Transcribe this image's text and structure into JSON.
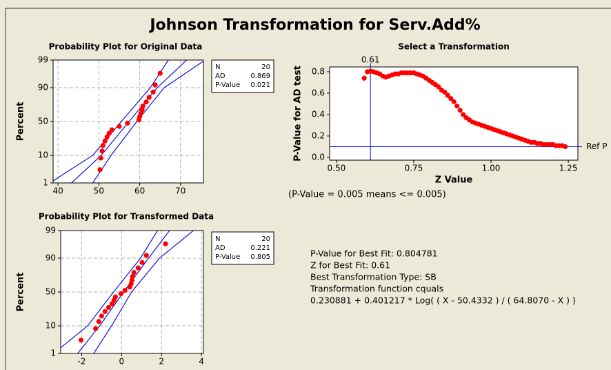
{
  "title": "Johnson Transformation for Serv.Add%",
  "chart_data": [
    {
      "type": "probability",
      "title": "Probability Plot for Original Data",
      "ylabel": "Percent",
      "xlim": [
        38.8,
        75.6
      ],
      "xticks": [
        40,
        50,
        60,
        70
      ],
      "ylim": [
        1,
        99
      ],
      "yticks": [
        1,
        10,
        50,
        90,
        99
      ],
      "grid": true,
      "color": "#ff0000",
      "line_color": "#1010e0",
      "x": [
        50.3,
        50.5,
        50.8,
        51.0,
        51.5,
        52.0,
        52.5,
        53.2,
        55.0,
        57.0,
        59.8,
        60.0,
        60.3,
        60.6,
        60.8,
        61.6,
        62.3,
        63.3,
        63.8,
        65.0
      ],
      "values": [
        3.4,
        8.3,
        13.2,
        18.1,
        23.0,
        27.9,
        32.8,
        37.7,
        42.6,
        47.5,
        52.5,
        57.4,
        62.3,
        67.2,
        72.1,
        77.0,
        81.9,
        86.8,
        91.7,
        96.6
      ],
      "curves": [
        {
          "x": [
            38.0,
            48.5,
            55.5,
            62.6,
            67.0
          ],
          "y": [
            1,
            10,
            50,
            90,
            99
          ]
        },
        {
          "x": [
            43.3,
            50.6,
            57.4,
            64.3,
            71.5
          ],
          "y": [
            1,
            10,
            50,
            90,
            99
          ]
        },
        {
          "x": [
            48.5,
            53.0,
            59.3,
            66.0,
            76.0
          ],
          "y": [
            1,
            10,
            50,
            90,
            99
          ]
        }
      ],
      "stats": [
        {
          "label": "N",
          "value": 20
        },
        {
          "label": "AD",
          "value": 0.869
        },
        {
          "label": "P-Value",
          "value": 0.021
        }
      ]
    },
    {
      "type": "probability",
      "title": "Probability Plot for Transformed Data",
      "ylabel": "Percent",
      "xlim": [
        -3.05,
        4.1
      ],
      "xticks": [
        -2,
        0,
        2,
        4
      ],
      "ylim": [
        1,
        99
      ],
      "yticks": [
        1,
        10,
        50,
        90,
        99
      ],
      "grid": true,
      "color": "#ff0000",
      "line_color": "#1010e0",
      "x": [
        -2.03,
        -1.3,
        -1.14,
        -1.0,
        -0.83,
        -0.65,
        -0.48,
        -0.38,
        -0.31,
        -0.03,
        0.17,
        0.41,
        0.48,
        0.52,
        0.55,
        0.62,
        0.83,
        1.03,
        1.24,
        2.2
      ],
      "values": [
        3.4,
        8.3,
        13.2,
        18.1,
        23.0,
        27.9,
        32.8,
        37.7,
        42.6,
        47.5,
        52.5,
        57.4,
        62.3,
        67.2,
        72.1,
        77.0,
        81.9,
        86.8,
        91.7,
        96.6
      ],
      "curves": [
        {
          "x": [
            -3.4,
            -1.7,
            -0.4,
            0.95,
            1.8
          ],
          "y": [
            1,
            10,
            50,
            90,
            99
          ]
        },
        {
          "x": [
            -2.2,
            -1.1,
            0.1,
            1.35,
            2.4
          ],
          "y": [
            1,
            10,
            50,
            90,
            99
          ]
        },
        {
          "x": [
            -1.4,
            -0.5,
            0.5,
            1.9,
            3.6
          ],
          "y": [
            1,
            10,
            50,
            90,
            99
          ]
        }
      ],
      "stats": [
        {
          "label": "N",
          "value": 20
        },
        {
          "label": "AD",
          "value": 0.221
        },
        {
          "label": "P-Value",
          "value": 0.805
        }
      ],
      "annotations": [
        "P-Value for Best Fit: 0.804781",
        "Z for Best Fit: 0.61",
        "Best Transformation Type: SB",
        "Transformation function cquals",
        "0.230881 + 0.401217 * Log( ( X - 50.4332 ) / ( 64.8070 - X ) )"
      ]
    },
    {
      "type": "scatter",
      "title": "Select a Transformation",
      "xlabel": "Z Value",
      "ylabel": "P-Value for AD test",
      "xlim": [
        0.478,
        1.281
      ],
      "xticks": [
        {
          "value": 0.5,
          "label": "0.50"
        },
        0.75,
        {
          "value": 1,
          "label": "1.00"
        },
        1.25
      ],
      "ylim": [
        -0.026,
        0.845
      ],
      "yticks": [
        {
          "value": 0,
          "label": "0.0"
        },
        0.2,
        0.4,
        0.6,
        0.8
      ],
      "grid": false,
      "color": "#ff0000",
      "line_color": "#1010e0",
      "x": [
        0.59,
        0.6,
        0.61,
        0.62,
        0.63,
        0.64,
        0.65,
        0.66,
        0.67,
        0.68,
        0.69,
        0.7,
        0.71,
        0.72,
        0.73,
        0.74,
        0.75,
        0.76,
        0.77,
        0.78,
        0.79,
        0.8,
        0.81,
        0.82,
        0.83,
        0.84,
        0.85,
        0.86,
        0.87,
        0.88,
        0.89,
        0.9,
        0.91,
        0.92,
        0.93,
        0.94,
        0.95,
        0.96,
        0.97,
        0.98,
        0.99,
        1.0,
        1.01,
        1.02,
        1.03,
        1.04,
        1.05,
        1.06,
        1.07,
        1.08,
        1.09,
        1.1,
        1.11,
        1.12,
        1.13,
        1.14,
        1.15,
        1.16,
        1.17,
        1.18,
        1.19,
        1.2,
        1.21,
        1.22,
        1.23,
        1.24
      ],
      "values": [
        0.74,
        0.8,
        0.805,
        0.8,
        0.79,
        0.78,
        0.76,
        0.75,
        0.76,
        0.77,
        0.78,
        0.78,
        0.79,
        0.79,
        0.79,
        0.79,
        0.79,
        0.78,
        0.77,
        0.76,
        0.74,
        0.72,
        0.7,
        0.68,
        0.66,
        0.63,
        0.61,
        0.58,
        0.55,
        0.52,
        0.48,
        0.44,
        0.4,
        0.37,
        0.35,
        0.33,
        0.32,
        0.31,
        0.3,
        0.29,
        0.28,
        0.27,
        0.26,
        0.25,
        0.24,
        0.23,
        0.22,
        0.21,
        0.2,
        0.19,
        0.18,
        0.17,
        0.16,
        0.15,
        0.14,
        0.14,
        0.13,
        0.13,
        0.12,
        0.12,
        0.12,
        0.12,
        0.11,
        0.11,
        0.11,
        0.1
      ],
      "vline": 0.61,
      "hline": {
        "value": 0.1,
        "label": "Ref P"
      },
      "note": "(P-Value = 0.005 means <= 0.005)"
    }
  ]
}
